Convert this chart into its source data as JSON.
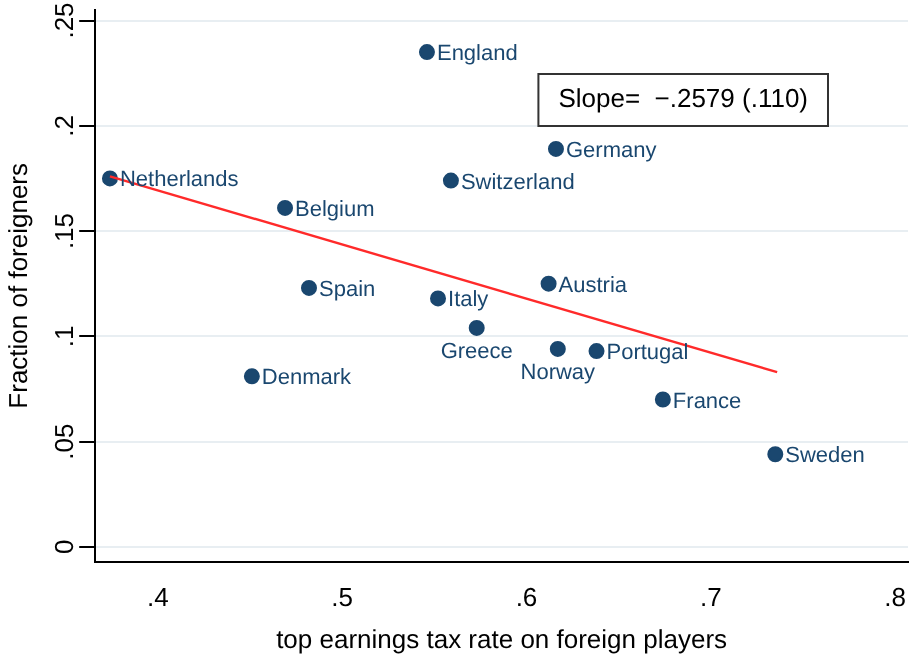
{
  "chart_data": {
    "type": "scatter",
    "xlabel": "top earnings tax rate on foreign players",
    "ylabel": "Fraction of foreigners",
    "xlim": [
      0.366,
      0.807
    ],
    "ylim": [
      -0.007,
      0.255
    ],
    "xticks": [
      {
        "value": 0.4,
        "label": ".4"
      },
      {
        "value": 0.5,
        "label": ".5"
      },
      {
        "value": 0.6,
        "label": ".6"
      },
      {
        "value": 0.7,
        "label": ".7"
      },
      {
        "value": 0.8,
        "label": ".8"
      }
    ],
    "yticks": [
      {
        "value": 0,
        "label": "0"
      },
      {
        "value": 0.05,
        "label": ".05"
      },
      {
        "value": 0.1,
        "label": ".1"
      },
      {
        "value": 0.15,
        "label": ".15"
      },
      {
        "value": 0.2,
        "label": ".2"
      },
      {
        "value": 0.25,
        "label": ".25"
      }
    ],
    "grid": "y",
    "marker": "circle",
    "series": [
      {
        "color": "#1a476f",
        "x": [
          0.546,
          0.374,
          0.469,
          0.616,
          0.559,
          0.482,
          0.552,
          0.612,
          0.573,
          0.617,
          0.638,
          0.451,
          0.674,
          0.735
        ],
        "values": [
          0.235,
          0.175,
          0.161,
          0.189,
          0.174,
          0.123,
          0.118,
          0.125,
          0.104,
          0.094,
          0.093,
          0.081,
          0.07,
          0.044
        ]
      },
      {
        "type": "line",
        "marker": "none",
        "color": "#ff2a2a",
        "x": [
          0.374,
          0.736
        ],
        "values": [
          0.176,
          0.083
        ]
      }
    ],
    "annotations": [
      {
        "text": "England",
        "x": 0.546,
        "y": 0.235
      },
      {
        "text": "Netherlands",
        "x": 0.374,
        "y": 0.175
      },
      {
        "text": "Belgium",
        "x": 0.469,
        "y": 0.161
      },
      {
        "text": "Germany",
        "x": 0.616,
        "y": 0.189
      },
      {
        "text": "Switzerland",
        "x": 0.559,
        "y": 0.174
      },
      {
        "text": "Spain",
        "x": 0.482,
        "y": 0.123
      },
      {
        "text": "Italy",
        "x": 0.552,
        "y": 0.118
      },
      {
        "text": "Austria",
        "x": 0.612,
        "y": 0.125
      },
      {
        "text": "Greece",
        "x": 0.573,
        "y": 0.104
      },
      {
        "text": "Norway",
        "x": 0.617,
        "y": 0.094
      },
      {
        "text": "Portugal",
        "x": 0.638,
        "y": 0.093
      },
      {
        "text": "Denmark",
        "x": 0.451,
        "y": 0.081
      },
      {
        "text": "France",
        "x": 0.674,
        "y": 0.07
      },
      {
        "text": "Sweden",
        "x": 0.735,
        "y": 0.044
      },
      "Slope=  −.2579 (.110)"
    ]
  }
}
